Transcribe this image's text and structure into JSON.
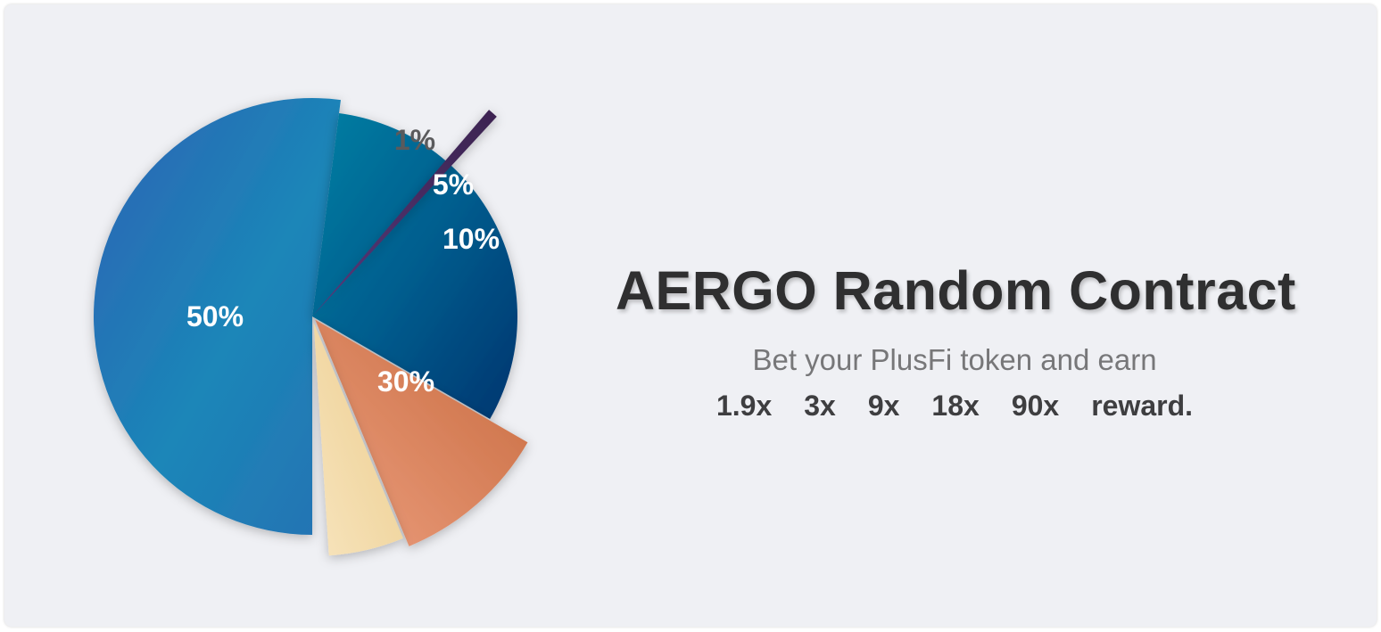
{
  "chart_data": {
    "type": "pie",
    "slices": [
      {
        "label": "50%",
        "value": 50,
        "color": "#2a7fb8"
      },
      {
        "label": "30%",
        "value": 30,
        "color": "#0a5a8c"
      },
      {
        "label": "10%",
        "value": 10,
        "color": "#dd8462"
      },
      {
        "label": "5%",
        "value": 5,
        "color": "#efd39c"
      },
      {
        "label": "1%",
        "value": 1,
        "color": "#4a2f63"
      }
    ]
  },
  "heading": {
    "title": "AERGO Random Contract",
    "subtitle": "Bet your PlusFi token and earn",
    "multipliers": [
      "1.9x",
      "3x",
      "9x",
      "18x",
      "90x"
    ],
    "suffix": "reward."
  },
  "colors": {
    "background": "#eff0f4",
    "title_text": "#2f2f30"
  }
}
